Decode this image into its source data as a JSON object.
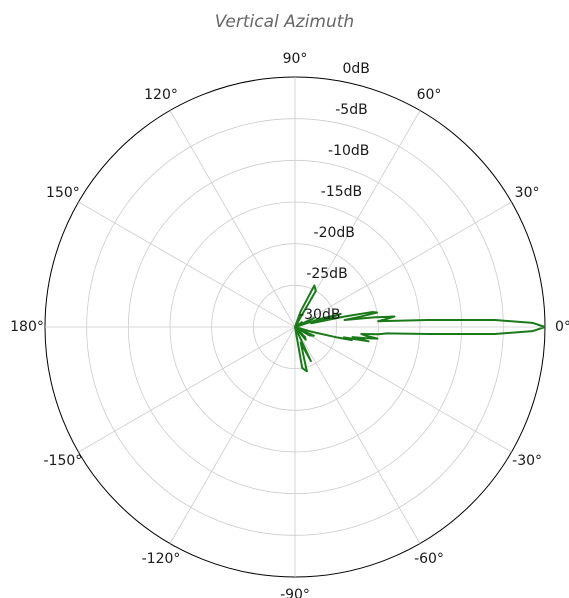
{
  "chart_data": {
    "type": "polar-line",
    "title": "Vertical Azimuth",
    "angle_unit": "degrees",
    "radial_unit": "dB",
    "radial_range": [
      -30,
      0
    ],
    "grid": true,
    "angular_ticks": [
      {
        "angle": 90,
        "label": "90°"
      },
      {
        "angle": 60,
        "label": "60°"
      },
      {
        "angle": 30,
        "label": "30°"
      },
      {
        "angle": 0,
        "label": "0°"
      },
      {
        "angle": -30,
        "label": "-30°"
      },
      {
        "angle": -60,
        "label": "-60°"
      },
      {
        "angle": -90,
        "label": "-90°"
      },
      {
        "angle": -120,
        "label": "-120°"
      },
      {
        "angle": -150,
        "label": "-150°"
      },
      {
        "angle": 180,
        "label": "180°"
      },
      {
        "angle": 150,
        "label": "150°"
      },
      {
        "angle": 120,
        "label": "120°"
      }
    ],
    "radial_ticks": [
      {
        "value": 0,
        "label": "0dB"
      },
      {
        "value": -5,
        "label": "-5dB"
      },
      {
        "value": -10,
        "label": "-10dB"
      },
      {
        "value": -15,
        "label": "-15dB"
      },
      {
        "value": -20,
        "label": "-20dB"
      },
      {
        "value": -25,
        "label": "-25dB"
      },
      {
        "value": -30,
        "label": "-30dB"
      }
    ],
    "series": [
      {
        "color": "#1a7a1a",
        "points": [
          {
            "angle": 0,
            "db": 0
          },
          {
            "angle": 1,
            "db": -1.5
          },
          {
            "angle": 2,
            "db": -6
          },
          {
            "angle": 3,
            "db": -14
          },
          {
            "angle": 4,
            "db": -20
          },
          {
            "angle": 5,
            "db": -19
          },
          {
            "angle": 6,
            "db": -18
          },
          {
            "angle": 7,
            "db": -20.5
          },
          {
            "angle": 8,
            "db": -24
          },
          {
            "angle": 9,
            "db": -22
          },
          {
            "angle": 10,
            "db": -20
          },
          {
            "angle": 11,
            "db": -20.6
          },
          {
            "angle": 12,
            "db": -24
          },
          {
            "angle": 13,
            "db": -28
          },
          {
            "angle": 14,
            "db": -26
          },
          {
            "angle": 16,
            "db": -24.3
          },
          {
            "angle": 18,
            "db": -27
          },
          {
            "angle": 20,
            "db": -30
          },
          {
            "angle": 25,
            "db": -27.5
          },
          {
            "angle": 30,
            "db": -30
          },
          {
            "angle": 35,
            "db": -29
          },
          {
            "angle": 40,
            "db": -30
          },
          {
            "angle": 60,
            "db": -25
          },
          {
            "angle": 65,
            "db": -24.5
          },
          {
            "angle": 70,
            "db": -28
          },
          {
            "angle": 90,
            "db": -30
          },
          {
            "angle": 120,
            "db": -30
          },
          {
            "angle": 180,
            "db": -30
          },
          {
            "angle": -120,
            "db": -30
          },
          {
            "angle": -90,
            "db": -30
          },
          {
            "angle": -80,
            "db": -25
          },
          {
            "angle": -75,
            "db": -24.5
          },
          {
            "angle": -70,
            "db": -28
          },
          {
            "angle": -65,
            "db": -25.5
          },
          {
            "angle": -60,
            "db": -30
          },
          {
            "angle": -50,
            "db": -28
          },
          {
            "angle": -45,
            "db": -28.3
          },
          {
            "angle": -40,
            "db": -30
          },
          {
            "angle": -30,
            "db": -28
          },
          {
            "angle": -25,
            "db": -27.5
          },
          {
            "angle": -20,
            "db": -30
          },
          {
            "angle": -16,
            "db": -28
          },
          {
            "angle": -14,
            "db": -25
          },
          {
            "angle": -13,
            "db": -23
          },
          {
            "angle": -12,
            "db": -24
          },
          {
            "angle": -11,
            "db": -21
          },
          {
            "angle": -10,
            "db": -23
          },
          {
            "angle": -9,
            "db": -21.5
          },
          {
            "angle": -8,
            "db": -20
          },
          {
            "angle": -7,
            "db": -21.5
          },
          {
            "angle": -6,
            "db": -22
          },
          {
            "angle": -5,
            "db": -20
          },
          {
            "angle": -4,
            "db": -19
          },
          {
            "angle": -3,
            "db": -14
          },
          {
            "angle": -2,
            "db": -6
          },
          {
            "angle": -1,
            "db": -1.5
          },
          {
            "angle": 0,
            "db": 0
          }
        ]
      }
    ]
  }
}
